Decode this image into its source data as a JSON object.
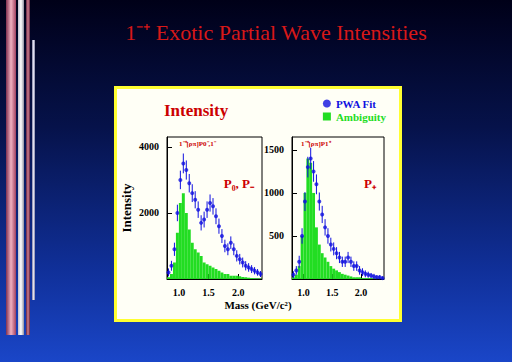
{
  "title": "1⁻⁺ Exotic Partial Wave Intensities",
  "panel_title": "Intensity",
  "xlabel": "Mass (GeV/c²)",
  "ylabel": "Intensity",
  "legend": "upper right",
  "chart_data": [
    {
      "type": "histogram",
      "title": "1⁻⁺[ρπ]P0⁻,1⁻",
      "annotation": "P₀, P₋",
      "bins": [
        0.8,
        0.85,
        0.9,
        0.95,
        1.0,
        1.05,
        1.1,
        1.15,
        1.2,
        1.25,
        1.3,
        1.35,
        1.4,
        1.45,
        1.5,
        1.55,
        1.6,
        1.65,
        1.7,
        1.75,
        1.8,
        1.85,
        1.9,
        1.95,
        2.0,
        2.05,
        2.1,
        2.15,
        2.2,
        2.25,
        2.3,
        2.35,
        2.4
      ],
      "series": [
        {
          "name": "PWA Fit",
          "type": "scatter",
          "marker": "circle",
          "color": "#1010e0",
          "values": [
            200,
            400,
            900,
            2000,
            3000,
            3500,
            3300,
            2900,
            2600,
            2400,
            2100,
            1700,
            1800,
            2100,
            2300,
            2200,
            1900,
            1600,
            1300,
            1000,
            900,
            1100,
            900,
            700,
            600,
            500,
            400,
            350,
            300,
            250,
            200,
            150
          ],
          "errors": [
            120,
            150,
            200,
            250,
            280,
            300,
            290,
            280,
            270,
            260,
            250,
            230,
            240,
            250,
            260,
            250,
            240,
            230,
            210,
            190,
            180,
            190,
            180,
            170,
            160,
            150,
            140,
            130,
            120,
            110,
            100,
            90
          ]
        },
        {
          "name": "Ambiguity",
          "type": "histogram",
          "color": "#22dd22",
          "values": [
            50,
            150,
            500,
            1400,
            2300,
            2600,
            2000,
            1500,
            1100,
            900,
            800,
            700,
            500,
            450,
            400,
            350,
            300,
            250,
            200,
            150,
            150,
            100,
            100,
            100,
            80,
            60,
            50,
            40,
            30,
            20,
            20,
            10
          ]
        }
      ],
      "xlim": [
        0.8,
        2.4
      ],
      "xticks": [
        {
          "value": 1,
          "label": "1.0"
        },
        {
          "value": 1.5,
          "label": "1.5"
        },
        {
          "value": 2,
          "label": "2.0"
        }
      ],
      "ylim": [
        0,
        4300
      ],
      "yticks": [
        2000,
        4000
      ]
    },
    {
      "type": "histogram",
      "title": "1⁻⁺[ρπ]P1⁺",
      "annotation": "P₊",
      "bins": [
        0.8,
        0.85,
        0.9,
        0.95,
        1.0,
        1.05,
        1.1,
        1.15,
        1.2,
        1.25,
        1.3,
        1.35,
        1.4,
        1.45,
        1.5,
        1.55,
        1.6,
        1.65,
        1.7,
        1.75,
        1.8,
        1.85,
        1.9,
        1.95,
        2.0,
        2.05,
        2.1,
        2.15,
        2.2,
        2.25,
        2.3,
        2.35,
        2.4
      ],
      "series": [
        {
          "name": "PWA Fit",
          "type": "scatter",
          "marker": "circle",
          "color": "#1010e0",
          "values": [
            50,
            100,
            200,
            500,
            900,
            1300,
            1400,
            1250,
            1100,
            900,
            750,
            600,
            500,
            400,
            350,
            300,
            250,
            200,
            200,
            250,
            200,
            150,
            150,
            100,
            80,
            60,
            50,
            40,
            30,
            20,
            20,
            10
          ],
          "errors": [
            40,
            50,
            70,
            90,
            110,
            120,
            125,
            120,
            115,
            105,
            100,
            95,
            90,
            80,
            75,
            70,
            65,
            60,
            60,
            65,
            60,
            55,
            55,
            50,
            45,
            40,
            35,
            30,
            30,
            25,
            25,
            20
          ]
        },
        {
          "name": "Ambiguity",
          "type": "histogram",
          "color": "#22dd22",
          "values": [
            20,
            50,
            150,
            500,
            1000,
            1400,
            1350,
            1000,
            600,
            400,
            300,
            250,
            200,
            150,
            120,
            100,
            80,
            60,
            50,
            40,
            30,
            20,
            20,
            20,
            10,
            10,
            10,
            10,
            5,
            5,
            5,
            5
          ]
        }
      ],
      "xlim": [
        0.8,
        2.4
      ],
      "xticks": [
        {
          "value": 1,
          "label": "1.0"
        },
        {
          "value": 1.5,
          "label": "1.5"
        },
        {
          "value": 2,
          "label": "2.0"
        }
      ],
      "ylim": [
        0,
        1650
      ],
      "yticks": [
        500,
        1000,
        1500
      ]
    }
  ]
}
